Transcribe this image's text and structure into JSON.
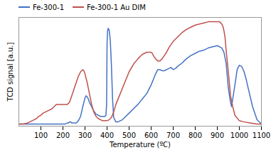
{
  "chart_data": {
    "type": "line",
    "title": "",
    "xlabel": "Temperature (ºC)",
    "ylabel": "TCD signal [a.u.]",
    "xlim": [
      0,
      1100
    ],
    "xticks": [
      100,
      200,
      300,
      400,
      500,
      600,
      700,
      800,
      900,
      1000,
      1100
    ],
    "ylim": [
      0,
      1
    ],
    "tick_labels": "x",
    "grid": false,
    "legend": "upper left",
    "series": [
      {
        "name": "Fe-300-1",
        "color": "#4472c4",
        "line_style": "solid",
        "x": [
          0,
          20,
          40,
          60,
          80,
          100,
          120,
          140,
          160,
          180,
          200,
          210,
          220,
          225,
          230,
          235,
          240,
          250,
          260,
          270,
          280,
          290,
          295,
          300,
          305,
          310,
          315,
          320,
          330,
          340,
          350,
          360,
          370,
          380,
          390,
          395,
          398,
          400,
          402,
          405,
          410,
          415,
          420,
          425,
          430,
          440,
          450,
          460,
          470,
          480,
          500,
          520,
          540,
          560,
          580,
          600,
          610,
          620,
          630,
          640,
          650,
          660,
          670,
          680,
          690,
          700,
          710,
          720,
          740,
          760,
          780,
          800,
          820,
          840,
          860,
          880,
          900,
          920,
          930,
          940,
          950,
          960,
          965,
          970,
          980,
          990,
          1000,
          1010,
          1020,
          1030,
          1040,
          1060,
          1080,
          1100
        ],
        "values": [
          0.02,
          0.02,
          0.02,
          0.02,
          0.02,
          0.02,
          0.02,
          0.02,
          0.02,
          0.02,
          0.02,
          0.02,
          0.03,
          0.03,
          0.04,
          0.04,
          0.03,
          0.03,
          0.03,
          0.05,
          0.09,
          0.18,
          0.22,
          0.26,
          0.28,
          0.27,
          0.25,
          0.22,
          0.18,
          0.14,
          0.11,
          0.1,
          0.09,
          0.09,
          0.09,
          0.1,
          0.2,
          0.75,
          0.87,
          0.9,
          0.88,
          0.78,
          0.55,
          0.25,
          0.08,
          0.04,
          0.04,
          0.05,
          0.06,
          0.08,
          0.12,
          0.16,
          0.2,
          0.25,
          0.3,
          0.38,
          0.43,
          0.48,
          0.52,
          0.52,
          0.51,
          0.51,
          0.52,
          0.53,
          0.54,
          0.52,
          0.53,
          0.55,
          0.58,
          0.62,
          0.65,
          0.67,
          0.69,
          0.7,
          0.72,
          0.73,
          0.74,
          0.72,
          0.68,
          0.58,
          0.35,
          0.22,
          0.18,
          0.25,
          0.38,
          0.52,
          0.56,
          0.55,
          0.51,
          0.44,
          0.35,
          0.18,
          0.06,
          0.02
        ]
      },
      {
        "name": "Fe-300-1 Au DIM",
        "color": "#c0504d",
        "line_style": "solid",
        "x": [
          0,
          20,
          40,
          50,
          60,
          70,
          80,
          90,
          100,
          110,
          120,
          130,
          140,
          150,
          155,
          160,
          165,
          170,
          180,
          190,
          200,
          210,
          220,
          230,
          240,
          250,
          260,
          270,
          280,
          285,
          290,
          295,
          300,
          310,
          320,
          330,
          340,
          350,
          360,
          370,
          380,
          390,
          400,
          410,
          420,
          430,
          440,
          460,
          480,
          500,
          520,
          540,
          560,
          580,
          600,
          605,
          610,
          620,
          630,
          640,
          650,
          660,
          670,
          680,
          700,
          720,
          740,
          760,
          780,
          800,
          820,
          840,
          860,
          880,
          900,
          910,
          915,
          920,
          925,
          930,
          935,
          940,
          950,
          960,
          970,
          980,
          1000,
          1020,
          1050,
          1080,
          1100
        ],
        "values": [
          0.02,
          0.02,
          0.03,
          0.04,
          0.05,
          0.06,
          0.07,
          0.09,
          0.1,
          0.12,
          0.13,
          0.14,
          0.15,
          0.16,
          0.17,
          0.18,
          0.19,
          0.2,
          0.2,
          0.2,
          0.2,
          0.2,
          0.2,
          0.22,
          0.28,
          0.34,
          0.4,
          0.46,
          0.5,
          0.51,
          0.52,
          0.51,
          0.48,
          0.4,
          0.3,
          0.2,
          0.13,
          0.09,
          0.07,
          0.06,
          0.05,
          0.05,
          0.05,
          0.06,
          0.08,
          0.13,
          0.2,
          0.3,
          0.4,
          0.5,
          0.57,
          0.62,
          0.66,
          0.68,
          0.68,
          0.67,
          0.65,
          0.62,
          0.6,
          0.6,
          0.62,
          0.65,
          0.68,
          0.72,
          0.78,
          0.82,
          0.86,
          0.89,
          0.91,
          0.93,
          0.94,
          0.95,
          0.96,
          0.96,
          0.96,
          0.96,
          0.95,
          0.94,
          0.92,
          0.88,
          0.82,
          0.7,
          0.5,
          0.28,
          0.18,
          0.1,
          0.05,
          0.04,
          0.03,
          0.02,
          0.02
        ]
      }
    ]
  }
}
